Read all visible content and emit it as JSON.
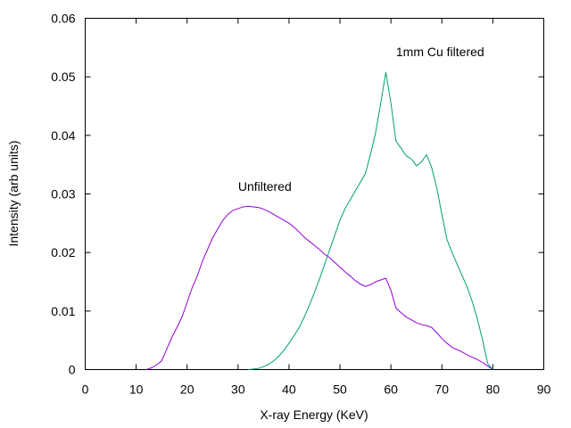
{
  "chart_data": {
    "type": "line",
    "xlabel": "X-ray Energy (KeV)",
    "ylabel": "Intensity (arb units)",
    "xlim": [
      0,
      90
    ],
    "ylim": [
      0,
      0.06
    ],
    "x_ticks": [
      "0",
      "10",
      "20",
      "30",
      "40",
      "50",
      "60",
      "70",
      "80",
      "90"
    ],
    "y_ticks": [
      "0",
      "0.01",
      "0.02",
      "0.03",
      "0.04",
      "0.05",
      "0.06"
    ],
    "grid": false,
    "series": [
      {
        "color": "#9400d3",
        "x": [
          12,
          13,
          14,
          15,
          16,
          17,
          18,
          19,
          20,
          21,
          22,
          23,
          24,
          25,
          26,
          27,
          28,
          29,
          30,
          31,
          32,
          33,
          34,
          35,
          36,
          37,
          38,
          39,
          40,
          41,
          42,
          43,
          44,
          45,
          46,
          47,
          48,
          49,
          50,
          51,
          52,
          53,
          54,
          55,
          56,
          57,
          58,
          59,
          60,
          61,
          62,
          63,
          64,
          65,
          66,
          67,
          68,
          69,
          70,
          71,
          72,
          73,
          74,
          75,
          76,
          77,
          78,
          79,
          80
        ],
        "y": [
          0,
          0.0003,
          0.0008,
          0.0015,
          0.0035,
          0.0055,
          0.0072,
          0.009,
          0.0115,
          0.014,
          0.016,
          0.0185,
          0.0205,
          0.0225,
          0.024,
          0.0255,
          0.0265,
          0.0272,
          0.0275,
          0.0278,
          0.0279,
          0.0278,
          0.0277,
          0.0274,
          0.027,
          0.0265,
          0.026,
          0.0255,
          0.025,
          0.0243,
          0.0235,
          0.0226,
          0.0219,
          0.0212,
          0.0205,
          0.0197,
          0.0191,
          0.0183,
          0.0175,
          0.0167,
          0.016,
          0.0152,
          0.0146,
          0.0142,
          0.0145,
          0.015,
          0.0153,
          0.0156,
          0.0135,
          0.0105,
          0.0097,
          0.009,
          0.0085,
          0.008,
          0.0077,
          0.0075,
          0.0072,
          0.0063,
          0.0053,
          0.0045,
          0.0038,
          0.0034,
          0.003,
          0.0025,
          0.0021,
          0.0017,
          0.0012,
          0.0006,
          0
        ]
      },
      {
        "color": "#009e73",
        "x": [
          32,
          33,
          34,
          35,
          36,
          37,
          38,
          39,
          40,
          41,
          42,
          43,
          44,
          45,
          46,
          47,
          48,
          49,
          50,
          51,
          52,
          53,
          54,
          55,
          56,
          57,
          58,
          59,
          60,
          61,
          62,
          63,
          64,
          65,
          66,
          67,
          68,
          69,
          70,
          71,
          72,
          73,
          74,
          75,
          76,
          77,
          78,
          79,
          80
        ],
        "y": [
          0,
          0.0001,
          0.0002,
          0.0005,
          0.0009,
          0.0015,
          0.0023,
          0.0033,
          0.0045,
          0.0058,
          0.0072,
          0.009,
          0.011,
          0.0132,
          0.0155,
          0.018,
          0.0205,
          0.023,
          0.0255,
          0.0275,
          0.029,
          0.0305,
          0.032,
          0.0335,
          0.0368,
          0.0405,
          0.0455,
          0.0508,
          0.0455,
          0.039,
          0.0378,
          0.0365,
          0.036,
          0.0348,
          0.0355,
          0.0367,
          0.0345,
          0.031,
          0.0265,
          0.0222,
          0.02,
          0.018,
          0.016,
          0.014,
          0.0115,
          0.0085,
          0.005,
          0.001,
          0
        ]
      }
    ],
    "annotations": [
      {
        "text": "Unfiltered",
        "x": 30,
        "y": 0.0305
      },
      {
        "text": "1mm Cu filtered",
        "x": 61,
        "y": 0.0535
      }
    ]
  }
}
